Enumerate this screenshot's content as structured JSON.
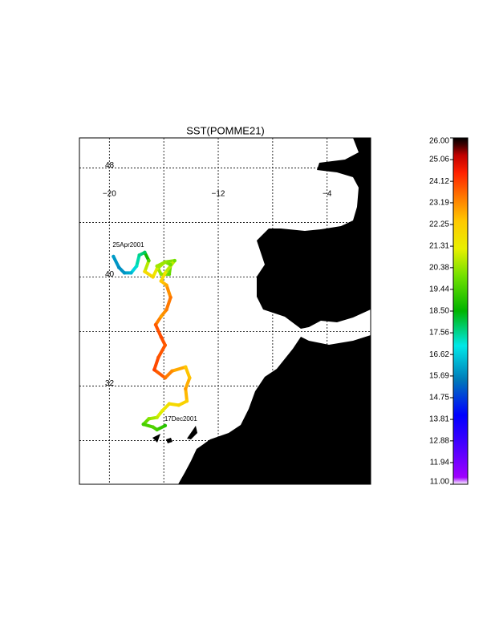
{
  "map": {
    "title": "SST(POMME21)",
    "lon_range": [
      -22.2,
      -0.8
    ],
    "lat_range": [
      24.8,
      50.2
    ],
    "lon_grid": [
      -20,
      -16,
      -12,
      -8,
      -4
    ],
    "lat_grid": [
      48,
      44,
      40,
      36,
      32,
      28
    ],
    "lon_ticks": [
      {
        "value": -20,
        "label": "−20"
      },
      {
        "value": -12,
        "label": "−12"
      },
      {
        "value": -4,
        "label": "−4"
      }
    ],
    "lat_ticks": [
      48,
      40,
      32
    ],
    "track": {
      "lon": [
        -19.7,
        -19.3,
        -18.9,
        -18.4,
        -18.0,
        -17.8,
        -17.4,
        -17.1,
        -17.4,
        -16.8,
        -16.5,
        -15.9,
        -15.5,
        -15.6,
        -16.2,
        -16.5,
        -15.9,
        -15.2,
        -15.9,
        -16.2,
        -15.8,
        -15.5,
        -15.8,
        -16.2,
        -16.6,
        -16.2,
        -15.9,
        -16.4,
        -16.7,
        -15.9,
        -15.4,
        -14.4,
        -14.1,
        -14.4,
        -14.3,
        -14.9,
        -15.6,
        -16.1,
        -16.5,
        -17.1,
        -17.5,
        -16.8,
        -16.5,
        -15.9
      ],
      "lat": [
        41.5,
        40.7,
        40.3,
        40.3,
        40.8,
        41.6,
        41.8,
        41.2,
        40.4,
        40.0,
        40.6,
        41.1,
        40.9,
        40.2,
        40.2,
        40.8,
        41.1,
        41.2,
        40.3,
        39.7,
        39.4,
        38.5,
        37.6,
        37.1,
        36.5,
        35.6,
        35.0,
        34.1,
        33.2,
        32.6,
        33.1,
        33.4,
        32.6,
        31.8,
        30.9,
        30.6,
        30.7,
        30.2,
        29.7,
        29.6,
        29.2,
        29.0,
        28.8,
        29.1
      ],
      "sst": [
        16.0,
        15.8,
        15.9,
        16.3,
        17.2,
        17.6,
        17.9,
        19.6,
        21.8,
        22.0,
        21.0,
        20.2,
        20.0,
        19.8,
        20.3,
        20.5,
        20.4,
        20.0,
        21.5,
        22.3,
        22.8,
        23.5,
        23.4,
        22.9,
        23.8,
        24.0,
        23.8,
        23.9,
        24.1,
        23.5,
        23.2,
        22.4,
        22.5,
        23.0,
        22.2,
        22.0,
        21.8,
        21.3,
        20.8,
        20.2,
        19.4,
        19.6,
        19.4,
        19.0
      ]
    },
    "start_label": "25Apr2001",
    "end_label": "17Dec2001",
    "colorbar": {
      "range": [
        11,
        26
      ],
      "ticks": [
        {
          "value": 11,
          "label": "11.00"
        },
        {
          "value": 11.94,
          "label": "11.94"
        },
        {
          "value": 12.88,
          "label": "12.88"
        },
        {
          "value": 13.81,
          "label": "13.81"
        },
        {
          "value": 14.75,
          "label": "14.75"
        },
        {
          "value": 15.69,
          "label": "15.69"
        },
        {
          "value": 16.62,
          "label": "16.62"
        },
        {
          "value": 17.56,
          "label": "17.56"
        },
        {
          "value": 18.5,
          "label": "18.50"
        },
        {
          "value": 19.44,
          "label": "19.44"
        },
        {
          "value": 20.38,
          "label": "20.38"
        },
        {
          "value": 21.31,
          "label": "21.31"
        },
        {
          "value": 22.25,
          "label": "22.25"
        },
        {
          "value": 23.19,
          "label": "23.19"
        },
        {
          "value": 24.12,
          "label": "24.12"
        },
        {
          "value": 25.06,
          "label": "25.06"
        },
        {
          "value": 26,
          "label": "26.00"
        }
      ]
    }
  }
}
